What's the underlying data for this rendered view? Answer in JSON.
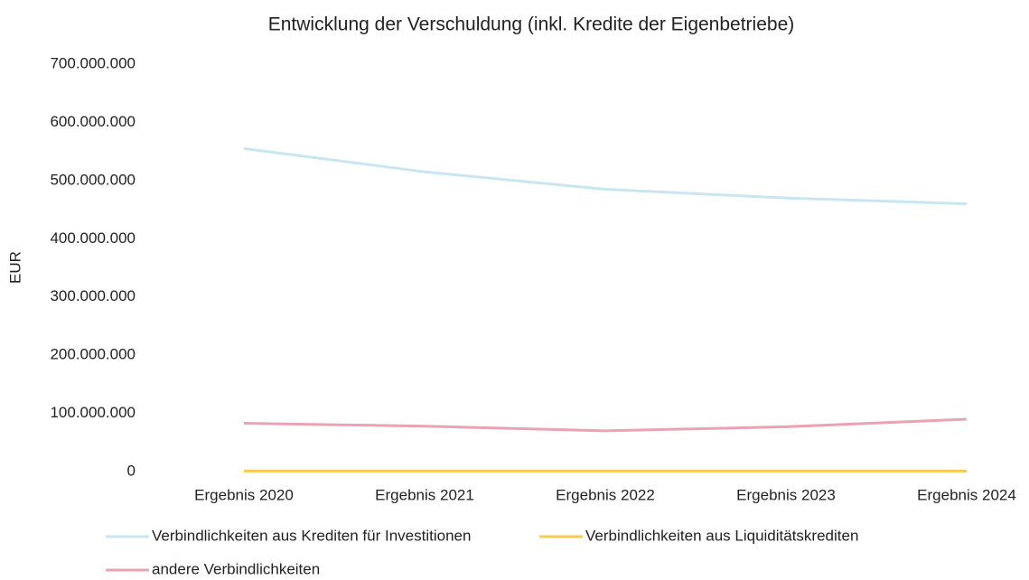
{
  "chart_data": {
    "type": "line",
    "title": "Entwicklung der Verschuldung (inkl. Kredite der Eigenbetriebe)",
    "y_label": "EUR",
    "categories": [
      "Ergebnis 2020",
      "Ergebnis 2021",
      "Ergebnis 2022",
      "Ergebnis 2023",
      "Ergebnis 2024"
    ],
    "series": [
      {
        "name": "Verbindlichkeiten aus Krediten für Investitionen",
        "color": "#c6e6f2",
        "values": [
          555000000,
          515000000,
          485000000,
          470000000,
          460000000
        ]
      },
      {
        "name": "Verbindlichkeiten aus Liquiditätskrediten",
        "color": "#f7c94e",
        "values": [
          1000000,
          1000000,
          1000000,
          1000000,
          1000000
        ]
      },
      {
        "name": "andere Verbindlichkeiten",
        "color": "#e9a3b3",
        "values": [
          83000000,
          78000000,
          70000000,
          77000000,
          90000000
        ]
      }
    ],
    "ylim": [
      0,
      700000000
    ],
    "yticks": [
      0,
      {
        "value": 100000000,
        "label": "100.000.000"
      },
      {
        "value": 200000000,
        "label": "200.000.000"
      },
      {
        "value": 300000000,
        "label": "300.000.000"
      },
      {
        "value": 400000000,
        "label": "400.000.000"
      },
      {
        "value": 500000000,
        "label": "500.000.000"
      },
      {
        "value": 600000000,
        "label": "600.000.000"
      },
      {
        "value": 700000000,
        "label": "700.000.000"
      }
    ],
    "grid": false
  }
}
